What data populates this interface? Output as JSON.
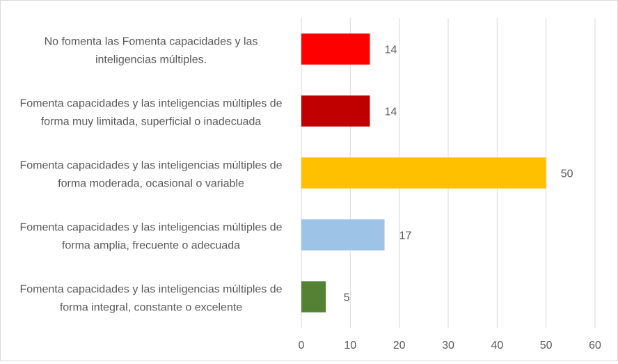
{
  "chart_data": {
    "type": "bar",
    "orientation": "horizontal",
    "title": "",
    "xlabel": "",
    "ylabel": "",
    "xlim": [
      0,
      60
    ],
    "x_ticks": [
      0,
      10,
      20,
      30,
      40,
      50,
      60
    ],
    "grid": "vertical",
    "categories": [
      {
        "lines": [
          "No fomenta las  Fomenta capacidades y las",
          "inteligencias múltiples."
        ],
        "value": 14,
        "color": "#FF0000"
      },
      {
        "lines": [
          "Fomenta capacidades y las inteligencias múltiples de",
          "forma muy limitada, superficial o inadecuada"
        ],
        "value": 14,
        "color": "#C00000"
      },
      {
        "lines": [
          "Fomenta capacidades y las inteligencias múltiples de",
          "forma moderada, ocasional o variable"
        ],
        "value": 50,
        "color": "#FFC000"
      },
      {
        "lines": [
          "Fomenta capacidades y las inteligencias múltiples de",
          "forma amplia, frecuente o adecuada"
        ],
        "value": 17,
        "color": "#9DC3E6"
      },
      {
        "lines": [
          "Fomenta capacidades y las inteligencias múltiples de",
          "forma integral, constante o excelente"
        ],
        "value": 5,
        "color": "#548235"
      }
    ]
  }
}
